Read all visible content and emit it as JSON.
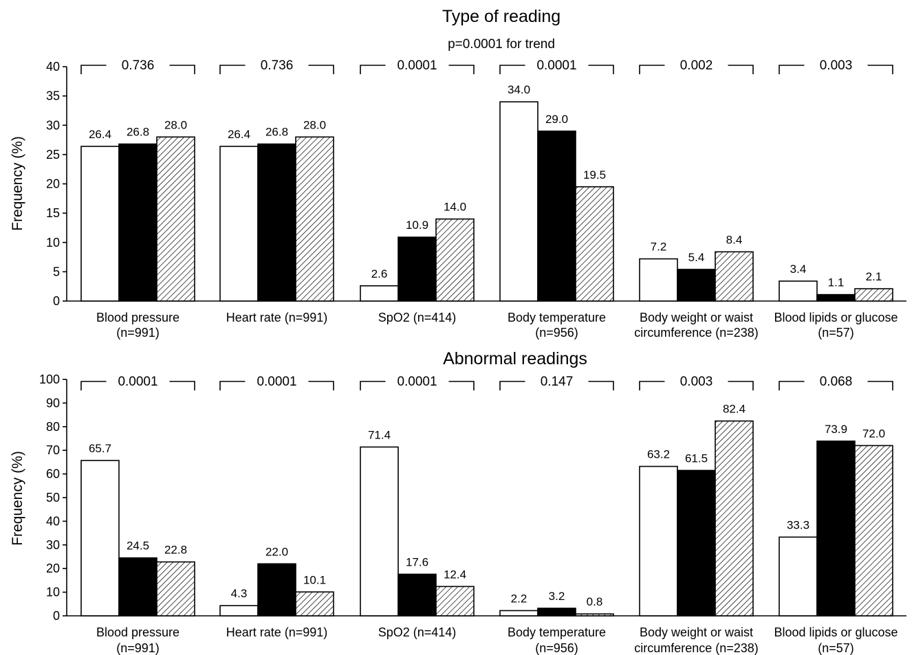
{
  "colors": {
    "series_1": "#ffffff",
    "series_2": "#000000",
    "series_3": "hatched"
  },
  "chart_data": [
    {
      "type": "bar",
      "title": "Type of reading",
      "subtitle": "p=0.0001 for trend",
      "ylabel": "Frequency (%)",
      "ylim": [
        0,
        40
      ],
      "yticks": [
        0,
        5,
        10,
        15,
        20,
        25,
        30,
        35,
        40
      ],
      "grid": false,
      "categories": [
        [
          "Blood pressure",
          "(n=991)"
        ],
        [
          "Heart rate (n=991)"
        ],
        [
          "SpO2 (n=414)"
        ],
        [
          "Body temperature",
          "(n=956)"
        ],
        [
          "Body weight or waist",
          "circumference (n=238)"
        ],
        [
          "Blood lipids or glucose",
          "(n=57)"
        ]
      ],
      "p_values": [
        "0.736",
        "0.736",
        "0.0001",
        "0.0001",
        "0.002",
        "0.003"
      ],
      "series": [
        {
          "fill": "white",
          "values": [
            26.4,
            26.4,
            2.6,
            34.0,
            7.2,
            3.4
          ],
          "labels": [
            "26.4",
            "26.4",
            "2.6",
            "34.0",
            "7.2",
            "3.4"
          ]
        },
        {
          "fill": "black",
          "values": [
            26.8,
            26.8,
            10.9,
            29.0,
            5.4,
            1.1
          ],
          "labels": [
            "26.8",
            "26.8",
            "10.9",
            "29.0",
            "5.4",
            "1.1"
          ]
        },
        {
          "fill": "hatched",
          "values": [
            28.0,
            28.0,
            14.0,
            19.5,
            8.4,
            2.1
          ],
          "labels": [
            "28.0",
            "28.0",
            "14.0",
            "19.5",
            "8.4",
            "2.1"
          ]
        }
      ]
    },
    {
      "type": "bar",
      "title": "Abnormal readings",
      "ylabel": "Frequency (%)",
      "ylim": [
        0,
        100
      ],
      "yticks": [
        0,
        10,
        20,
        30,
        40,
        50,
        60,
        70,
        80,
        90,
        100
      ],
      "grid": false,
      "categories": [
        [
          "Blood pressure",
          "(n=991)"
        ],
        [
          "Heart rate (n=991)"
        ],
        [
          "SpO2 (n=414)"
        ],
        [
          "Body temperature",
          "(n=956)"
        ],
        [
          "Body weight or waist",
          "circumference (n=238)"
        ],
        [
          "Blood lipids or glucose",
          "(n=57)"
        ]
      ],
      "p_values": [
        "0.0001",
        "0.0001",
        "0.0001",
        "0.147",
        "0.003",
        "0.068"
      ],
      "series": [
        {
          "fill": "white",
          "values": [
            65.7,
            4.3,
            71.4,
            2.2,
            63.2,
            33.3
          ],
          "labels": [
            "65.7",
            "4.3",
            "71.4",
            "2.2",
            "63.2",
            "33.3"
          ]
        },
        {
          "fill": "black",
          "values": [
            24.5,
            22.0,
            17.6,
            3.2,
            61.5,
            73.9
          ],
          "labels": [
            "24.5",
            "22.0",
            "17.6",
            "3.2",
            "61.5",
            "73.9"
          ]
        },
        {
          "fill": "hatched",
          "values": [
            22.8,
            10.1,
            12.4,
            0.8,
            82.4,
            72.0
          ],
          "labels": [
            "22.8",
            "10.1",
            "12.4",
            "0.8",
            "82.4",
            "72.0"
          ]
        }
      ]
    }
  ]
}
